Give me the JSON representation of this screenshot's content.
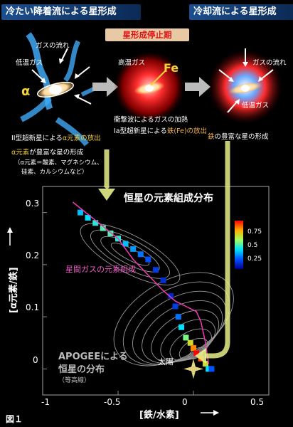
{
  "header": {
    "left": "冷たい降着流による星形成",
    "right": "冷却流による星形成",
    "stop": "星形成停止期"
  },
  "panel1": {
    "gas_flow": "ガスの流れ",
    "cold_gas": "低温ガス",
    "alpha": "α",
    "caption1": "II型超新星による",
    "caption1_em": "α元素の放出",
    "caption2_em": "α元素",
    "caption2": "が豊富な星の形成",
    "note1": "（α元素＝酸素、マグネシウム、",
    "note2": "硅素、カルシウムなど）"
  },
  "panel2": {
    "hot_gas": "高温ガス",
    "fe": "Fe",
    "caption1": "衝撃波によるガスの加熱",
    "caption2a": "Ia型超新星による",
    "caption2b": "鉄(Fe)の放出"
  },
  "panel3": {
    "gas_flow": "ガスの流れ",
    "cold_gas": "低温ガス",
    "caption_em": "鉄",
    "caption": "の豊富な星の形成"
  },
  "chart_data": {
    "type": "heatmap",
    "title": "恒星の元素組成分布",
    "xlabel": "[鉄/水素]",
    "ylabel": "[α元素/鉄]",
    "xlim": [
      -1.0,
      0.5
    ],
    "ylim": [
      -0.05,
      0.35
    ],
    "xticks": [
      "-1",
      "-0.5",
      "0",
      "0.5"
    ],
    "yticks": [
      "0",
      "0.1",
      "0.2",
      "0.3"
    ],
    "colorbar": {
      "ticks": [
        "0.75",
        "0.5",
        "0.25"
      ],
      "range": [
        0,
        1
      ]
    },
    "heatmap_cells": [
      {
        "x": -0.75,
        "y": 0.3,
        "v": 0.35
      },
      {
        "x": -0.7,
        "y": 0.29,
        "v": 0.4
      },
      {
        "x": -0.65,
        "y": 0.28,
        "v": 0.45
      },
      {
        "x": -0.6,
        "y": 0.27,
        "v": 0.5
      },
      {
        "x": -0.55,
        "y": 0.26,
        "v": 0.5
      },
      {
        "x": -0.5,
        "y": 0.25,
        "v": 0.45
      },
      {
        "x": -0.45,
        "y": 0.24,
        "v": 0.35
      },
      {
        "x": -0.4,
        "y": 0.23,
        "v": 0.3
      },
      {
        "x": -0.35,
        "y": 0.22,
        "v": 0.25
      },
      {
        "x": -0.3,
        "y": 0.21,
        "v": 0.2
      },
      {
        "x": -0.25,
        "y": 0.19,
        "v": 0.15
      },
      {
        "x": -0.2,
        "y": 0.17,
        "v": 0.12
      },
      {
        "x": -0.15,
        "y": 0.14,
        "v": 0.1
      },
      {
        "x": -0.12,
        "y": 0.12,
        "v": 0.15
      },
      {
        "x": -0.1,
        "y": 0.1,
        "v": 0.25
      },
      {
        "x": -0.08,
        "y": 0.08,
        "v": 0.4
      },
      {
        "x": -0.05,
        "y": 0.06,
        "v": 0.55
      },
      {
        "x": -0.02,
        "y": 0.05,
        "v": 0.7
      },
      {
        "x": 0.0,
        "y": 0.04,
        "v": 0.85
      },
      {
        "x": 0.02,
        "y": 0.03,
        "v": 1.0
      },
      {
        "x": 0.05,
        "y": 0.02,
        "v": 0.9
      },
      {
        "x": 0.08,
        "y": 0.01,
        "v": 0.7
      },
      {
        "x": 0.1,
        "y": 0.0,
        "v": 0.4
      },
      {
        "x": 0.12,
        "y": 0.0,
        "v": 0.2
      }
    ],
    "gas_track": [
      {
        "x": -0.8,
        "y": 0.32
      },
      {
        "x": -0.65,
        "y": 0.285
      },
      {
        "x": -0.5,
        "y": 0.25
      },
      {
        "x": -0.4,
        "y": 0.21
      },
      {
        "x": -0.3,
        "y": 0.18
      },
      {
        "x": -0.2,
        "y": 0.15
      },
      {
        "x": -0.12,
        "y": 0.13
      },
      {
        "x": -0.05,
        "y": 0.12
      },
      {
        "x": 0.02,
        "y": 0.11
      },
      {
        "x": 0.05,
        "y": 0.09
      },
      {
        "x": 0.08,
        "y": 0.05
      },
      {
        "x": 0.1,
        "y": 0.01
      }
    ],
    "annotations": {
      "gas_label": "星間ガスの元素組成",
      "apogee1": "APOGEEによる",
      "apogee2": "恒星の分布",
      "apogee3": "（等高線）",
      "sun": "太陽",
      "fig": "図１"
    },
    "sun_point": {
      "x": 0.0,
      "y": 0.0
    }
  }
}
